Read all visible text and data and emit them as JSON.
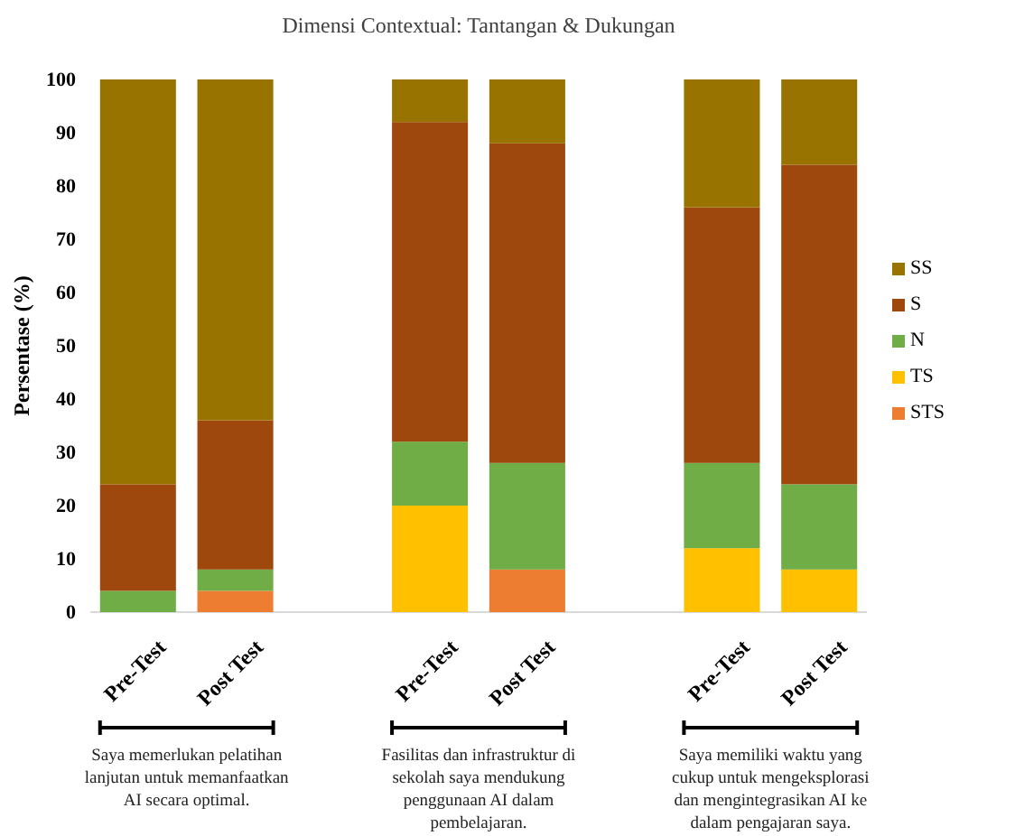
{
  "chart_data": {
    "type": "bar",
    "stacked": true,
    "title": "Dimensi Contextual: Tantangan & Dukungan",
    "ylabel": "Persentase (%)",
    "categories": [
      "Pre-Test",
      "Post Test",
      null,
      "Pre-Test",
      "Post Test",
      null,
      "Pre-Test",
      "Post Test"
    ],
    "series": [
      {
        "name": "STS",
        "color": "#ed7d31",
        "values": [
          0,
          4,
          null,
          0,
          8,
          null,
          0,
          0
        ]
      },
      {
        "name": "TS",
        "color": "#ffc000",
        "values": [
          0,
          0,
          null,
          20,
          0,
          null,
          12,
          8
        ]
      },
      {
        "name": "N",
        "color": "#70ad47",
        "values": [
          4,
          4,
          null,
          12,
          20,
          null,
          16,
          16
        ]
      },
      {
        "name": "S",
        "color": "#9e480e",
        "values": [
          20,
          28,
          null,
          60,
          60,
          null,
          48,
          60
        ]
      },
      {
        "name": "SS",
        "color": "#997300",
        "values": [
          76,
          64,
          null,
          8,
          12,
          null,
          24,
          16
        ]
      }
    ],
    "ylim": [
      0,
      100
    ],
    "yticks": [
      0,
      10,
      20,
      30,
      40,
      50,
      60,
      70,
      80,
      90,
      100
    ],
    "grid": false,
    "legend": "right",
    "annotations": [
      "Saya memerlukan pelatihan lanjutan untuk memanfaatkan AI secara optimal.",
      "Fasilitas dan infrastruktur di sekolah saya mendukung penggunaan AI dalam pembelajaran.",
      "Saya memiliki waktu yang cukup untuk mengeksplorasi dan mengintegrasikan AI ke dalam pengajaran saya."
    ]
  }
}
